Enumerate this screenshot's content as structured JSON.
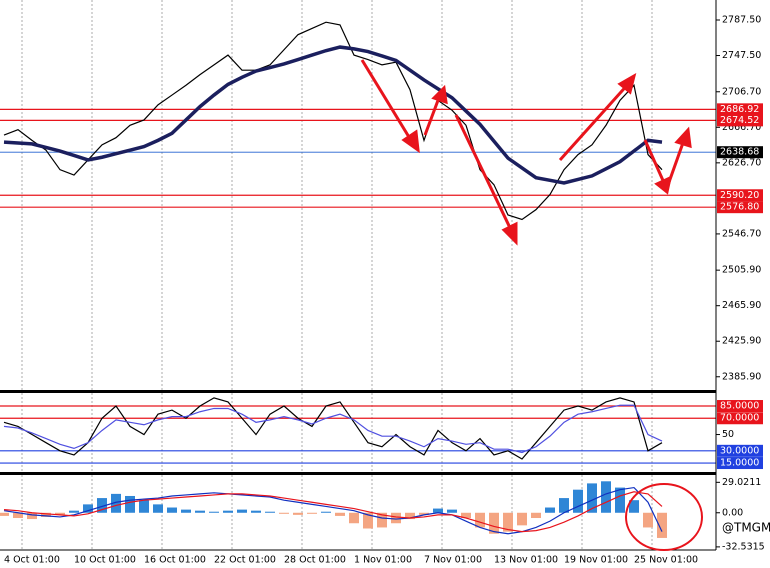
{
  "chart_data": [
    {
      "type": "line",
      "categories": [
        "4 Oct 01:00",
        null,
        null,
        null,
        null,
        "10 Oct 01:00",
        null,
        null,
        null,
        null,
        "16 Oct 01:00",
        null,
        null,
        null,
        null,
        "22 Oct 01:00",
        null,
        null,
        null,
        null,
        "28 Oct 01:00",
        null,
        null,
        null,
        null,
        "1 Nov 01:00",
        null,
        null,
        null,
        null,
        "7 Nov 01:00",
        null,
        null,
        null,
        null,
        "13 Nov 01:00",
        null,
        null,
        null,
        null,
        "19 Nov 01:00",
        null,
        null,
        null,
        null,
        "25 Nov 01:00",
        null,
        null
      ],
      "series": [
        {
          "color": "#000000",
          "values": [
            2658,
            2664,
            2652,
            2641,
            2619,
            2613,
            2630,
            2647,
            2655,
            2669,
            2675,
            2692,
            2703,
            2714,
            2726,
            2737,
            2748,
            2731,
            2731,
            2737,
            2754,
            2771,
            2778,
            2785,
            2782,
            2748,
            2743,
            2737,
            2740,
            2709,
            2652,
            2697,
            2686,
            2669,
            2619,
            2602,
            2568,
            2563,
            2574,
            2591,
            2619,
            2636,
            2647,
            2669,
            2697,
            2714,
            2636,
            2619
          ]
        },
        {
          "color": "#1b1f5e",
          "values": [
            2650,
            2649,
            2648,
            2644,
            2640,
            2635,
            2630,
            2633,
            2637,
            2641,
            2645,
            2652,
            2660,
            2675,
            2690,
            2703,
            2715,
            2723,
            2730,
            2734,
            2738,
            2743,
            2748,
            2753,
            2757,
            2755,
            2752,
            2747,
            2742,
            2731,
            2720,
            2710,
            2700,
            2685,
            2670,
            2651,
            2632,
            2621,
            2610,
            2607,
            2604,
            2608,
            2612,
            2620,
            2628,
            2640,
            2652,
            2650
          ]
        }
      ],
      "ylim": [
        2371,
        2810
      ],
      "yticks": [
        {
          "value": 2787.5,
          "label": "2787.50"
        },
        {
          "value": 2747.5,
          "label": "2747.50"
        },
        {
          "value": 2706.7,
          "label": "2706.70"
        },
        {
          "value": 2666.7,
          "label": "2666.70"
        },
        {
          "value": 2626.7,
          "label": "2626.70"
        },
        {
          "value": 2546.7,
          "label": "2546.70"
        },
        {
          "value": 2505.9,
          "label": "2505.90"
        },
        {
          "value": 2465.9,
          "label": "2465.90"
        },
        {
          "value": 2425.9,
          "label": "2425.90"
        },
        {
          "value": 2385.9,
          "label": "2385.90"
        }
      ],
      "levels": [
        2686.92,
        2674.52,
        2638.68,
        {
          "value": 2590.2,
          "label": "2590.20"
        },
        {
          "value": 2576.8,
          "label": "2576.80"
        }
      ],
      "level_colors": [
        "#e8141c",
        "#e8141c",
        "#2060d0",
        "#e8141c",
        "#e8141c"
      ],
      "level_label_colors": [
        "#e8141c",
        "#e8141c",
        "#000000",
        "#e8141c",
        "#e8141c"
      ]
    },
    {
      "type": "line",
      "series": [
        {
          "color": "#000000",
          "values": [
            65,
            60,
            50,
            40,
            30,
            25,
            40,
            70,
            85,
            60,
            50,
            75,
            80,
            70,
            85,
            95,
            90,
            70,
            50,
            75,
            85,
            70,
            60,
            85,
            90,
            65,
            40,
            35,
            50,
            35,
            25,
            55,
            40,
            30,
            45,
            25,
            30,
            20,
            40,
            60,
            80,
            85,
            80,
            90,
            95,
            90,
            30,
            40
          ]
        },
        {
          "color": "#5050e0",
          "values": [
            60,
            58,
            52,
            45,
            38,
            33,
            40,
            55,
            68,
            65,
            62,
            68,
            72,
            72,
            78,
            82,
            82,
            75,
            65,
            68,
            72,
            68,
            63,
            70,
            75,
            68,
            55,
            48,
            48,
            42,
            35,
            45,
            42,
            38,
            40,
            32,
            32,
            28,
            35,
            48,
            65,
            75,
            78,
            82,
            86,
            86,
            50,
            42
          ]
        }
      ],
      "ylim": [
        4,
        101
      ],
      "yticks": [
        50
      ],
      "levels": [
        {
          "value": 85,
          "label": "85.0000"
        },
        {
          "value": 70,
          "label": "70.0000"
        },
        {
          "value": 30,
          "label": "30.0000"
        },
        {
          "value": 15,
          "label": "15.0000"
        }
      ],
      "level_colors": [
        "#e8141c",
        "#e8141c",
        "#2040e0",
        "#2040e0"
      ],
      "level_label_colors": [
        "#e8141c",
        "#e8141c",
        "#2040e0",
        "#2040e0"
      ]
    },
    {
      "type": "combo",
      "series": [
        {
          "type": "bar",
          "color": "#2f86d6",
          "negative_color": "#f4a582",
          "values": [
            -3,
            -5,
            -6,
            -4,
            -2,
            2,
            8,
            14,
            18,
            16,
            12,
            8,
            5,
            3,
            2,
            1,
            2,
            3,
            2,
            1,
            -1,
            -2,
            -1,
            1,
            -3,
            -10,
            -15,
            -14,
            -10,
            -6,
            -2,
            4,
            3,
            -5,
            -14,
            -20,
            -18,
            -12,
            -5,
            5,
            14,
            22,
            28,
            30,
            24,
            12,
            -14,
            -24
          ]
        },
        {
          "type": "line",
          "color": "#1030c0",
          "values": [
            2,
            0,
            -2,
            -3,
            -4,
            -2,
            2,
            6,
            10,
            12,
            13,
            14,
            16,
            17,
            18,
            19,
            18,
            17,
            16,
            15,
            12,
            10,
            8,
            6,
            4,
            2,
            -2,
            -5,
            -6,
            -5,
            -2,
            0,
            -2,
            -8,
            -14,
            -18,
            -20,
            -18,
            -14,
            -8,
            0,
            6,
            12,
            18,
            22,
            24,
            10,
            -18
          ]
        },
        {
          "type": "line",
          "color": "#e8141c",
          "values": [
            3,
            2,
            0,
            -1,
            -2,
            -3,
            -1,
            3,
            7,
            10,
            12,
            13,
            14,
            15,
            16,
            17,
            18,
            18,
            17,
            16,
            14,
            12,
            10,
            8,
            6,
            4,
            1,
            -2,
            -4,
            -5,
            -4,
            -2,
            -2,
            -5,
            -9,
            -13,
            -16,
            -18,
            -17,
            -14,
            -9,
            -3,
            4,
            10,
            16,
            20,
            18,
            6
          ]
        }
      ],
      "ylim": [
        -35.5,
        36
      ],
      "yticks": [
        {
          "value": 29.0211,
          "label": "29.0211"
        },
        {
          "value": 0,
          "label": "0.00"
        },
        {
          "value": -32.5315,
          "label": "-32.5315"
        }
      ]
    }
  ],
  "watermark": "@TMGM"
}
